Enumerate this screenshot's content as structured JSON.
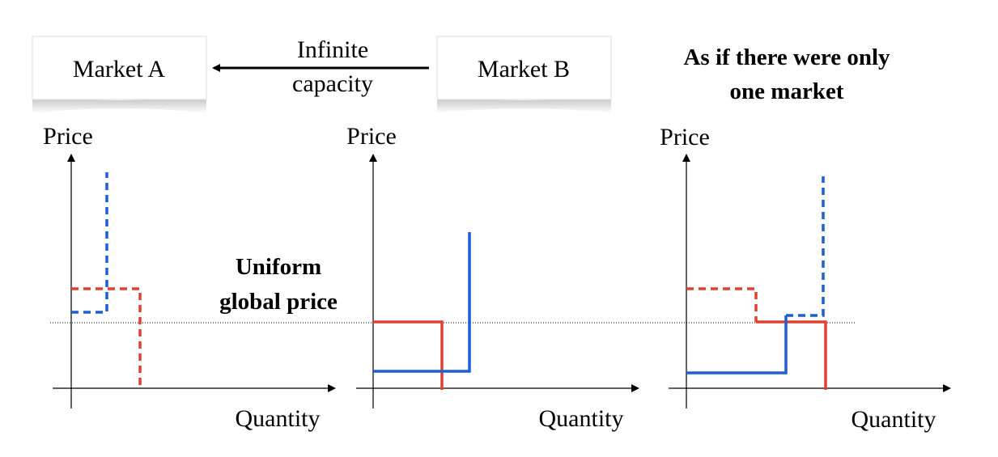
{
  "boxes": [
    "Market A",
    "Market B"
  ],
  "arrow_label": [
    "Infinite",
    "capacity"
  ],
  "note": [
    "As if there were only",
    "one market"
  ],
  "price_label": [
    "Uniform",
    "global price"
  ],
  "panels": [
    {
      "y_label": "Price",
      "x_label": "Quantity"
    },
    {
      "y_label": "Price",
      "x_label": "Quantity"
    },
    {
      "y_label": "Price",
      "x_label": "Quantity"
    }
  ]
}
